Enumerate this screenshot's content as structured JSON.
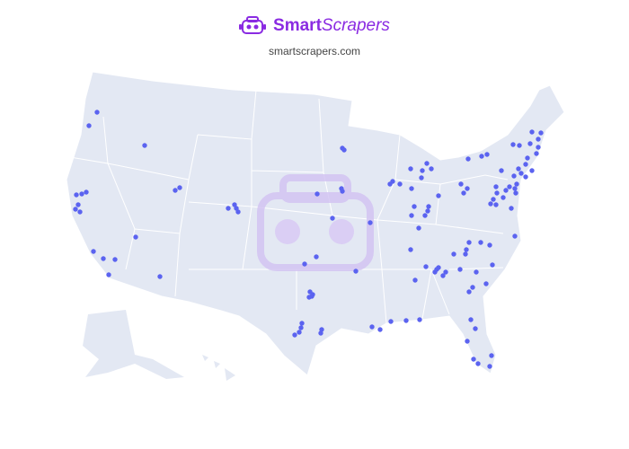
{
  "header": {
    "brand_bold": "Smart",
    "brand_italic": "Scrapers",
    "url": "smartscrapers.com"
  },
  "colors": {
    "brand": "#8a2be2",
    "land": "#e3e8f3",
    "marker": "#5b63f0",
    "watermark": "#c9b6f0"
  },
  "map": {
    "region": "United States",
    "marker_icon": "location-dot",
    "watermark_icon": "smartscrapers-robot-logo"
  }
}
